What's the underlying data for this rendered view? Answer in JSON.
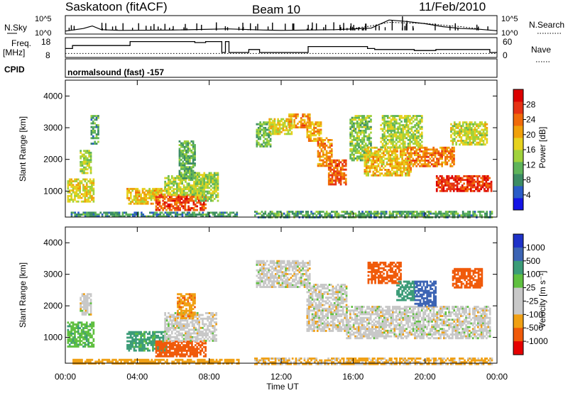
{
  "header": {
    "station": "Saskatoon (fitACF)",
    "beam": "Beam 10",
    "date": "11/Feb/2010",
    "cpid_label": "CPID",
    "cpid_value": "normalsound (fast) -157"
  },
  "nsky_panel": {
    "left_label": "N.Sky",
    "right_label": "N.Search",
    "left_ticks": [
      "10^5",
      "10^0"
    ],
    "right_ticks": [
      "10^5",
      "10^0"
    ]
  },
  "freq_panel": {
    "left_label_top": "Freq.",
    "left_label_bottom": "[MHz]",
    "right_label": "Nave",
    "left_ticks": [
      "18",
      "8"
    ],
    "right_ticks": [
      "60",
      "0"
    ]
  },
  "time_axis": {
    "label": "Time UT",
    "ticks": [
      "00:00",
      "04:00",
      "08:00",
      "12:00",
      "16:00",
      "20:00",
      "00:00"
    ]
  },
  "colors": {
    "power_scale": [
      "#1414e6",
      "#2a5cc8",
      "#3c8c64",
      "#5fb45a",
      "#a0d23c",
      "#e6d21e",
      "#f0a00a",
      "#f06a0a",
      "#e63214",
      "#dc0000"
    ],
    "velocity_scale": [
      "#e60000",
      "#f05a0a",
      "#f0a014",
      "#c8c8c8",
      "#c8c8c8",
      "#60c040",
      "#3c9c78",
      "#3c64b4",
      "#1e32c8"
    ]
  },
  "chart_data": [
    {
      "type": "line",
      "title": "N.Sky / N.Search",
      "x_range_hours": [
        0,
        24
      ],
      "ylim_log10": [
        0,
        5
      ],
      "series": [
        {
          "name": "N.Sky",
          "x": [
            0,
            1,
            1.5,
            2,
            3,
            6,
            9,
            11,
            12,
            15,
            17,
            18,
            19,
            20,
            21,
            22,
            23,
            24
          ],
          "y": [
            0.8,
            1.5,
            2.2,
            1.2,
            1.0,
            1.1,
            1.4,
            1.1,
            1.0,
            1.2,
            1.6,
            3.8,
            3.4,
            2.8,
            2.0,
            1.5,
            1.3,
            0.9
          ]
        },
        {
          "name": "N.Search",
          "x": [
            16,
            17,
            18,
            19,
            20,
            21,
            22,
            23
          ],
          "y": [
            1.5,
            2.2,
            3.2,
            3.0,
            2.9,
            2.4,
            2.0,
            1.4
          ]
        }
      ]
    },
    {
      "type": "line",
      "title": "Freq. [MHz] / Nave",
      "x_range_hours": [
        0,
        24
      ],
      "ylim_freq": [
        8,
        18
      ],
      "ylim_nave": [
        0,
        60
      ],
      "series": [
        {
          "name": "Freq.",
          "x": [
            0,
            0.4,
            0.4,
            3.6,
            3.6,
            7.2,
            7.2,
            7.8,
            7.8,
            8.7,
            8.7,
            8.9,
            8.9,
            9.1,
            9.1,
            10.2,
            10.2,
            10.8,
            10.8,
            13.5,
            13.5,
            16.8,
            16.8,
            17.2,
            17.2,
            19.4,
            19.4,
            20.6,
            20.6,
            23.6,
            23.6,
            24
          ],
          "y": [
            12.5,
            12.5,
            14.0,
            14.0,
            16.0,
            16.0,
            15.5,
            15.5,
            16.0,
            16.0,
            10.5,
            10.5,
            16.0,
            16.0,
            10.5,
            10.5,
            12.0,
            12.0,
            10.5,
            10.5,
            13.5,
            13.5,
            12.5,
            12.5,
            12.0,
            12.0,
            11.5,
            11.5,
            12.0,
            12.0,
            10.5,
            10.5
          ]
        },
        {
          "name": "Nave",
          "x": [
            0,
            24
          ],
          "y": [
            12,
            12
          ]
        }
      ]
    },
    {
      "type": "heatmap",
      "title": "Power",
      "xlabel": "Time UT",
      "ylabel": "Slant Range [km]",
      "colorbar_label": "Power [dB]",
      "colorbar_ticks": [
        "4",
        "8",
        "12",
        "16",
        "20",
        "24",
        "28"
      ],
      "y_ticks": [
        "1000",
        "2000",
        "3000",
        "4000"
      ],
      "x_range_hours": [
        0,
        24
      ],
      "ylim_km": [
        180,
        4500
      ],
      "clim": [
        0,
        32
      ],
      "patches": [
        {
          "t0": 0.1,
          "t1": 1.6,
          "r0": 700,
          "r1": 1400,
          "v": 17
        },
        {
          "t0": 0.8,
          "t1": 1.4,
          "r0": 1600,
          "r1": 2300,
          "v": 14
        },
        {
          "t0": 1.4,
          "t1": 1.8,
          "r0": 2500,
          "r1": 3400,
          "v": 10
        },
        {
          "t0": 3.4,
          "t1": 5.5,
          "r0": 600,
          "r1": 1100,
          "v": 19
        },
        {
          "t0": 5.0,
          "t1": 7.8,
          "r0": 400,
          "r1": 900,
          "v": 26
        },
        {
          "t0": 5.5,
          "t1": 7.6,
          "r0": 900,
          "r1": 1500,
          "v": 15
        },
        {
          "t0": 7.2,
          "t1": 8.5,
          "r0": 700,
          "r1": 1600,
          "v": 14
        },
        {
          "t0": 6.3,
          "t1": 7.2,
          "r0": 1400,
          "r1": 2600,
          "v": 11
        },
        {
          "t0": 0.3,
          "t1": 9.5,
          "r0": 180,
          "r1": 350,
          "v": 9
        },
        {
          "t0": 10.6,
          "t1": 11.4,
          "r0": 2400,
          "r1": 3200,
          "v": 12
        },
        {
          "t0": 11.3,
          "t1": 12.6,
          "r0": 2800,
          "r1": 3300,
          "v": 17
        },
        {
          "t0": 12.4,
          "t1": 13.6,
          "r0": 3000,
          "r1": 3450,
          "v": 22
        },
        {
          "t0": 13.4,
          "t1": 14.2,
          "r0": 2600,
          "r1": 3200,
          "v": 20
        },
        {
          "t0": 14.0,
          "t1": 14.8,
          "r0": 1800,
          "r1": 2700,
          "v": 22
        },
        {
          "t0": 14.6,
          "t1": 15.6,
          "r0": 1200,
          "r1": 2000,
          "v": 25
        },
        {
          "t0": 15.8,
          "t1": 17.0,
          "r0": 2000,
          "r1": 3400,
          "v": 13
        },
        {
          "t0": 16.6,
          "t1": 19.2,
          "r0": 1500,
          "r1": 2400,
          "v": 19
        },
        {
          "t0": 17.5,
          "t1": 19.8,
          "r0": 2400,
          "r1": 3400,
          "v": 15
        },
        {
          "t0": 19.0,
          "t1": 21.6,
          "r0": 1800,
          "r1": 2400,
          "v": 23
        },
        {
          "t0": 20.6,
          "t1": 23.7,
          "r0": 1000,
          "r1": 1500,
          "v": 27
        },
        {
          "t0": 21.4,
          "t1": 23.4,
          "r0": 2500,
          "r1": 3200,
          "v": 16
        },
        {
          "t0": 10.5,
          "t1": 23.7,
          "r0": 180,
          "r1": 380,
          "v": 10
        }
      ]
    },
    {
      "type": "heatmap",
      "title": "Velocity",
      "xlabel": "Time UT",
      "ylabel": "Slant Range [km]",
      "colorbar_label": "Velocity [m s⁻¹]",
      "colorbar_ticks": [
        "1000",
        "500",
        "100",
        "25",
        "-25",
        "-100",
        "-500",
        "-1000"
      ],
      "y_ticks": [
        "1000",
        "2000",
        "3000",
        "4000"
      ],
      "x_range_hours": [
        0,
        24
      ],
      "ylim_km": [
        180,
        4500
      ],
      "patches": [
        {
          "t0": 0.1,
          "t1": 1.6,
          "r0": 700,
          "r1": 1500,
          "v": 80
        },
        {
          "t0": 0.8,
          "t1": 1.4,
          "r0": 1700,
          "r1": 2400,
          "v": 0
        },
        {
          "t0": 3.4,
          "t1": 5.6,
          "r0": 600,
          "r1": 1200,
          "v": 120
        },
        {
          "t0": 5.0,
          "t1": 7.8,
          "r0": 400,
          "r1": 900,
          "v": -150
        },
        {
          "t0": 5.5,
          "t1": 8.4,
          "r0": 900,
          "r1": 1800,
          "v": 0
        },
        {
          "t0": 6.2,
          "t1": 7.2,
          "r0": 1600,
          "r1": 2400,
          "v": -80
        },
        {
          "t0": 0.4,
          "t1": 9.6,
          "r0": 180,
          "r1": 320,
          "v": -60
        },
        {
          "t0": 10.6,
          "t1": 13.6,
          "r0": 2600,
          "r1": 3450,
          "v": 0
        },
        {
          "t0": 13.4,
          "t1": 15.6,
          "r0": 1200,
          "r1": 2700,
          "v": 0
        },
        {
          "t0": 15.6,
          "t1": 23.6,
          "r0": 1000,
          "r1": 2000,
          "v": 0
        },
        {
          "t0": 16.8,
          "t1": 18.6,
          "r0": 2700,
          "r1": 3400,
          "v": -200
        },
        {
          "t0": 18.4,
          "t1": 19.4,
          "r0": 2200,
          "r1": 2800,
          "v": 180
        },
        {
          "t0": 19.4,
          "t1": 20.6,
          "r0": 2000,
          "r1": 2800,
          "v": 700
        },
        {
          "t0": 21.5,
          "t1": 23.2,
          "r0": 2600,
          "r1": 3200,
          "v": -300
        },
        {
          "t0": 10.5,
          "t1": 23.7,
          "r0": 180,
          "r1": 360,
          "v": -40
        }
      ]
    }
  ]
}
